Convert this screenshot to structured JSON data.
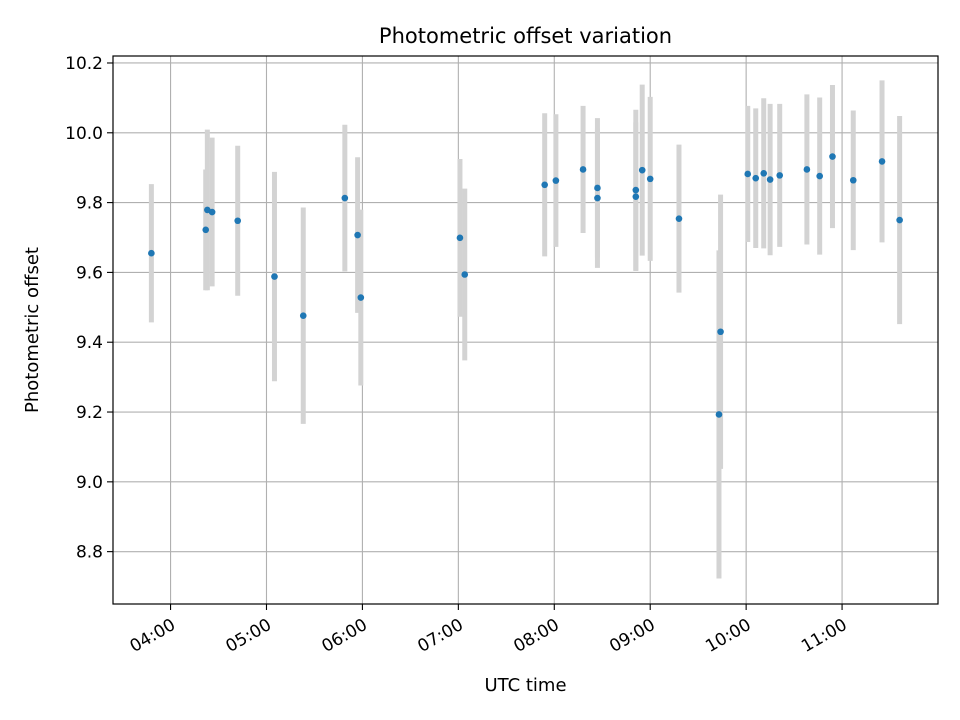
{
  "chart_data": {
    "type": "scatter",
    "title": "Photometric offset variation",
    "xlabel": "UTC time",
    "ylabel": "Photometric offset",
    "x_ticks": [
      "04:00",
      "05:00",
      "06:00",
      "07:00",
      "08:00",
      "09:00",
      "10:00",
      "11:00"
    ],
    "y_ticks": [
      "8.8",
      "9.0",
      "9.2",
      "9.4",
      "9.6",
      "9.8",
      "10.0",
      "10.2"
    ],
    "xlim": [
      "03:24",
      "12:00"
    ],
    "ylim": [
      8.65,
      10.22
    ],
    "grid": true,
    "point_color": "#1f77b4",
    "errorbar_color": "#d3d3d3",
    "points": [
      {
        "time": "03:48",
        "y": 9.655,
        "err": 0.198
      },
      {
        "time": "04:22",
        "y": 9.722,
        "err": 0.173
      },
      {
        "time": "04:23",
        "y": 9.779,
        "err": 0.23
      },
      {
        "time": "04:26",
        "y": 9.773,
        "err": 0.213
      },
      {
        "time": "04:42",
        "y": 9.748,
        "err": 0.215
      },
      {
        "time": "05:05",
        "y": 9.588,
        "err": 0.3
      },
      {
        "time": "05:23",
        "y": 9.476,
        "err": 0.31
      },
      {
        "time": "05:49",
        "y": 9.813,
        "err": 0.21
      },
      {
        "time": "05:57",
        "y": 9.707,
        "err": 0.223
      },
      {
        "time": "05:59",
        "y": 9.528,
        "err": 0.252
      },
      {
        "time": "07:01",
        "y": 9.699,
        "err": 0.226
      },
      {
        "time": "07:04",
        "y": 9.594,
        "err": 0.246
      },
      {
        "time": "07:54",
        "y": 9.851,
        "err": 0.205
      },
      {
        "time": "08:01",
        "y": 9.863,
        "err": 0.19
      },
      {
        "time": "08:18",
        "y": 9.895,
        "err": 0.182
      },
      {
        "time": "08:27",
        "y": 9.842,
        "err": 0.2
      },
      {
        "time": "08:27",
        "y": 9.813,
        "err": 0.2
      },
      {
        "time": "08:51",
        "y": 9.836,
        "err": 0.23
      },
      {
        "time": "08:51",
        "y": 9.817,
        "err": 0.213
      },
      {
        "time": "08:55",
        "y": 9.893,
        "err": 0.245
      },
      {
        "time": "09:00",
        "y": 9.868,
        "err": 0.235
      },
      {
        "time": "09:18",
        "y": 9.754,
        "err": 0.212
      },
      {
        "time": "09:43",
        "y": 9.193,
        "err": 0.47
      },
      {
        "time": "09:44",
        "y": 9.43,
        "err": 0.393
      },
      {
        "time": "10:01",
        "y": 9.882,
        "err": 0.195
      },
      {
        "time": "10:06",
        "y": 9.87,
        "err": 0.2
      },
      {
        "time": "10:11",
        "y": 9.884,
        "err": 0.215
      },
      {
        "time": "10:15",
        "y": 9.866,
        "err": 0.217
      },
      {
        "time": "10:21",
        "y": 9.878,
        "err": 0.205
      },
      {
        "time": "10:38",
        "y": 9.895,
        "err": 0.215
      },
      {
        "time": "10:46",
        "y": 9.876,
        "err": 0.225
      },
      {
        "time": "10:54",
        "y": 9.932,
        "err": 0.205
      },
      {
        "time": "11:07",
        "y": 9.864,
        "err": 0.2
      },
      {
        "time": "11:25",
        "y": 9.918,
        "err": 0.232
      },
      {
        "time": "11:36",
        "y": 9.75,
        "err": 0.298
      }
    ]
  }
}
